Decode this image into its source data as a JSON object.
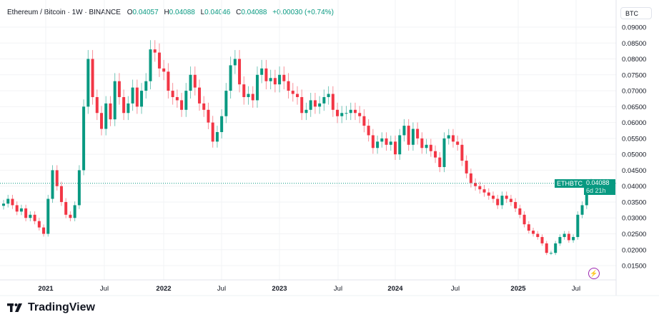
{
  "header": {
    "symbol": "Ethereum / Bitcoin · 1W · BINANCE",
    "open_label": "O",
    "open": "0.04057",
    "high_label": "H",
    "high": "0.04088",
    "low_label": "L",
    "low": "0.04046",
    "close_label": "C",
    "close": "0.04088",
    "change": "+0.00030 (+0.74%)"
  },
  "unit": "BTC",
  "last_price": {
    "ticker": "ETHBTC",
    "price": "0.04088",
    "countdown": "6d 21h"
  },
  "footer": {
    "brand": "TradingView"
  },
  "colors": {
    "up": "#089981",
    "down": "#f23645"
  },
  "icons": {
    "alert": "lightning-bolt-icon",
    "logo": "tradingview-logo-icon"
  },
  "chart_data": {
    "type": "candlestick",
    "interval": "1W",
    "ylim": [
      0.0125,
      0.0915
    ],
    "y_ticks": [
      "0.09000",
      "0.08500",
      "0.08000",
      "0.07500",
      "0.07000",
      "0.06500",
      "0.06000",
      "0.05500",
      "0.05000",
      "0.04500",
      "0.04000",
      "0.03500",
      "0.03000",
      "0.02500",
      "0.02000",
      "0.01500"
    ],
    "x_ticks": [
      {
        "label": "2021",
        "year": true
      },
      {
        "label": "Jul",
        "year": false
      },
      {
        "label": "2022",
        "year": true
      },
      {
        "label": "Jul",
        "year": false
      },
      {
        "label": "2023",
        "year": true
      },
      {
        "label": "Jul",
        "year": false
      },
      {
        "label": "2024",
        "year": true
      },
      {
        "label": "Jul",
        "year": false
      },
      {
        "label": "2025",
        "year": true
      },
      {
        "label": "Jul",
        "year": false
      }
    ],
    "grid": true,
    "closes": [
      0.0345,
      0.036,
      0.034,
      0.032,
      0.033,
      0.03,
      0.031,
      0.029,
      0.027,
      0.025,
      0.036,
      0.045,
      0.04,
      0.035,
      0.031,
      0.03,
      0.034,
      0.045,
      0.065,
      0.08,
      0.068,
      0.063,
      0.058,
      0.066,
      0.061,
      0.073,
      0.068,
      0.063,
      0.066,
      0.071,
      0.065,
      0.07,
      0.073,
      0.083,
      0.082,
      0.077,
      0.076,
      0.07,
      0.068,
      0.067,
      0.064,
      0.07,
      0.075,
      0.071,
      0.066,
      0.064,
      0.06,
      0.054,
      0.057,
      0.062,
      0.07,
      0.078,
      0.08,
      0.072,
      0.068,
      0.069,
      0.067,
      0.075,
      0.077,
      0.073,
      0.074,
      0.072,
      0.075,
      0.073,
      0.07,
      0.069,
      0.068,
      0.063,
      0.064,
      0.067,
      0.065,
      0.066,
      0.068,
      0.069,
      0.064,
      0.062,
      0.063,
      0.063,
      0.064,
      0.063,
      0.062,
      0.059,
      0.056,
      0.052,
      0.054,
      0.055,
      0.053,
      0.054,
      0.05,
      0.056,
      0.059,
      0.053,
      0.058,
      0.055,
      0.052,
      0.053,
      0.051,
      0.049,
      0.046,
      0.055,
      0.056,
      0.054,
      0.053,
      0.048,
      0.044,
      0.041,
      0.04,
      0.039,
      0.038,
      0.037,
      0.036,
      0.034,
      0.037,
      0.036,
      0.035,
      0.033,
      0.031,
      0.028,
      0.026,
      0.025,
      0.024,
      0.022,
      0.019,
      0.019,
      0.022,
      0.024,
      0.025,
      0.023,
      0.024,
      0.031,
      0.034,
      0.0405,
      0.04088
    ],
    "last": 0.04088
  }
}
